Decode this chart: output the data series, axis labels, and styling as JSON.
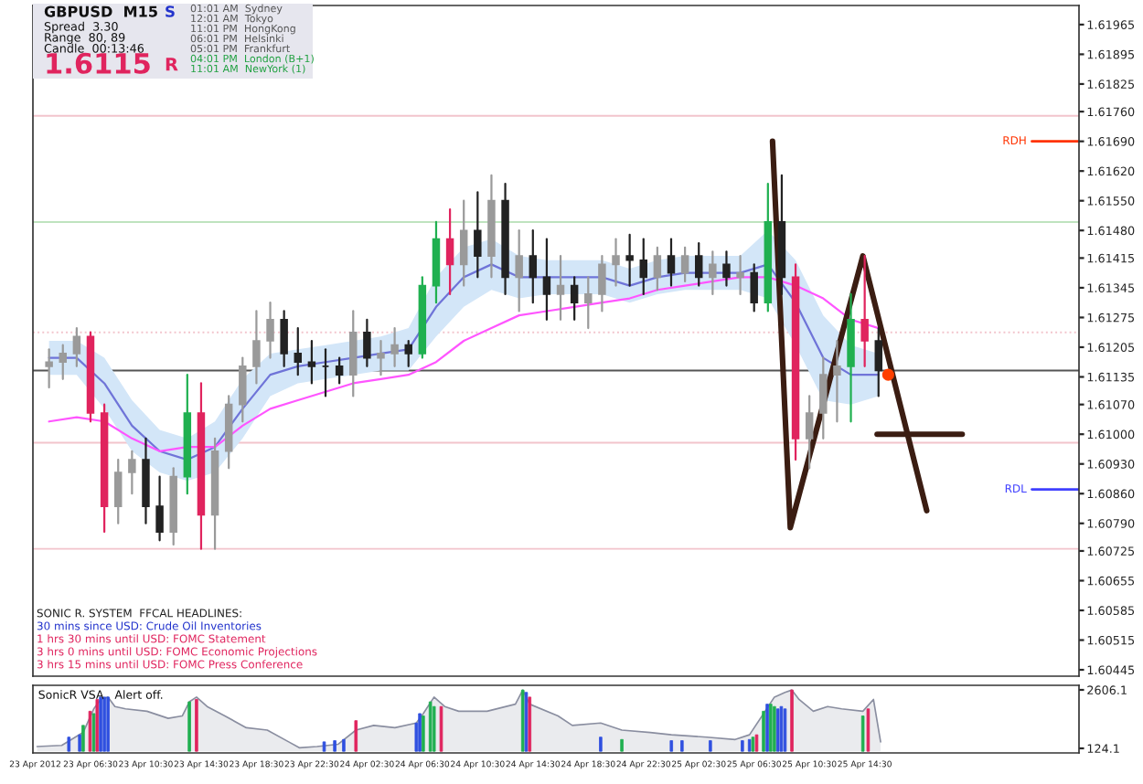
{
  "chart_data": [
    {
      "type": "candlestick",
      "title": "GBPUSD  M15",
      "x": [
        "2012-04-23T03:30",
        "2012-04-23T04:30",
        "2012-04-23T05:30",
        "2012-04-23T06:30",
        "2012-04-23T07:30",
        "2012-04-23T08:30",
        "2012-04-23T09:30",
        "2012-04-23T10:30",
        "2012-04-23T11:30",
        "2012-04-23T12:30",
        "2012-04-23T13:30",
        "2012-04-23T14:30",
        "2012-04-23T15:30",
        "2012-04-23T16:30",
        "2012-04-23T17:30",
        "2012-04-23T18:30",
        "2012-04-23T19:30",
        "2012-04-23T20:30",
        "2012-04-23T21:30",
        "2012-04-23T22:30",
        "2012-04-23T23:30",
        "2012-04-24T00:30",
        "2012-04-24T01:30",
        "2012-04-24T02:30",
        "2012-04-24T03:30",
        "2012-04-24T04:30",
        "2012-04-24T05:30",
        "2012-04-24T06:30",
        "2012-04-24T07:30",
        "2012-04-24T08:30",
        "2012-04-24T09:30",
        "2012-04-24T10:30",
        "2012-04-24T11:30",
        "2012-04-24T12:30",
        "2012-04-24T13:30",
        "2012-04-24T14:30",
        "2012-04-24T15:30",
        "2012-04-24T16:30",
        "2012-04-24T17:30",
        "2012-04-24T18:30",
        "2012-04-24T19:30",
        "2012-04-24T20:30",
        "2012-04-24T21:30",
        "2012-04-24T22:30",
        "2012-04-24T23:30",
        "2012-04-25T00:30",
        "2012-04-25T01:30",
        "2012-04-25T02:30",
        "2012-04-25T03:30",
        "2012-04-25T04:30",
        "2012-04-25T05:30",
        "2012-04-25T06:30",
        "2012-04-25T07:30",
        "2012-04-25T08:30",
        "2012-04-25T09:30",
        "2012-04-25T10:30",
        "2012-04-25T11:30",
        "2012-04-25T12:30",
        "2012-04-25T13:30",
        "2012-04-25T14:30",
        "2012-04-25T15:30"
      ],
      "ohlc": [
        [
          1.6116,
          1.612,
          1.6111,
          1.6117
        ],
        [
          1.6117,
          1.6121,
          1.6113,
          1.6119
        ],
        [
          1.6119,
          1.6125,
          1.6116,
          1.6123
        ],
        [
          1.6123,
          1.6124,
          1.6103,
          1.6105
        ],
        [
          1.6105,
          1.6107,
          1.6077,
          1.6083
        ],
        [
          1.6083,
          1.6094,
          1.6079,
          1.6091
        ],
        [
          1.6091,
          1.6096,
          1.6086,
          1.6094
        ],
        [
          1.6094,
          1.6099,
          1.6079,
          1.6083
        ],
        [
          1.6083,
          1.609,
          1.6075,
          1.6077
        ],
        [
          1.6077,
          1.6092,
          1.6074,
          1.609
        ],
        [
          1.609,
          1.6114,
          1.6086,
          1.6105
        ],
        [
          1.6105,
          1.6112,
          1.6073,
          1.6081
        ],
        [
          1.6081,
          1.6099,
          1.6073,
          1.6096
        ],
        [
          1.6096,
          1.6109,
          1.6092,
          1.6107
        ],
        [
          1.6107,
          1.6118,
          1.6103,
          1.6116
        ],
        [
          1.6116,
          1.6129,
          1.6112,
          1.6122
        ],
        [
          1.6122,
          1.6131,
          1.6118,
          1.6127
        ],
        [
          1.6127,
          1.6129,
          1.6116,
          1.6119
        ],
        [
          1.6119,
          1.6125,
          1.6114,
          1.6117
        ],
        [
          1.6117,
          1.6122,
          1.6112,
          1.6116
        ],
        [
          1.6116,
          1.612,
          1.6109,
          1.6116
        ],
        [
          1.6116,
          1.6118,
          1.6112,
          1.6114
        ],
        [
          1.6114,
          1.6129,
          1.6109,
          1.6124
        ],
        [
          1.6124,
          1.6127,
          1.6116,
          1.6118
        ],
        [
          1.6118,
          1.6122,
          1.6114,
          1.6119
        ],
        [
          1.6119,
          1.6125,
          1.6116,
          1.6121
        ],
        [
          1.6121,
          1.6122,
          1.6116,
          1.6119
        ],
        [
          1.6119,
          1.6137,
          1.6118,
          1.6135
        ],
        [
          1.6135,
          1.615,
          1.6131,
          1.6146
        ],
        [
          1.6146,
          1.6153,
          1.6133,
          1.614
        ],
        [
          1.614,
          1.6155,
          1.6135,
          1.6148
        ],
        [
          1.6148,
          1.6157,
          1.6137,
          1.6142
        ],
        [
          1.6142,
          1.6161,
          1.6137,
          1.6155
        ],
        [
          1.6155,
          1.6159,
          1.6133,
          1.6137
        ],
        [
          1.6137,
          1.6148,
          1.6129,
          1.6142
        ],
        [
          1.6142,
          1.6148,
          1.6131,
          1.6137
        ],
        [
          1.6137,
          1.6146,
          1.6127,
          1.6133
        ],
        [
          1.6133,
          1.6142,
          1.6127,
          1.6135
        ],
        [
          1.6135,
          1.6137,
          1.6127,
          1.6131
        ],
        [
          1.6131,
          1.6137,
          1.6125,
          1.6133
        ],
        [
          1.6133,
          1.6142,
          1.6129,
          1.614
        ],
        [
          1.614,
          1.6146,
          1.6135,
          1.6142
        ],
        [
          1.6142,
          1.6147,
          1.6135,
          1.6141
        ],
        [
          1.6141,
          1.6146,
          1.6133,
          1.6137
        ],
        [
          1.6137,
          1.6144,
          1.6134,
          1.6142
        ],
        [
          1.6142,
          1.6146,
          1.6135,
          1.6138
        ],
        [
          1.6138,
          1.6144,
          1.6136,
          1.6142
        ],
        [
          1.6142,
          1.6145,
          1.6135,
          1.6137
        ],
        [
          1.6137,
          1.6143,
          1.6133,
          1.614
        ],
        [
          1.614,
          1.6143,
          1.6135,
          1.6137
        ],
        [
          1.6137,
          1.6142,
          1.6133,
          1.6138
        ],
        [
          1.6138,
          1.614,
          1.6129,
          1.6131
        ],
        [
          1.6131,
          1.6159,
          1.6129,
          1.615
        ],
        [
          1.615,
          1.6161,
          1.6133,
          1.6137
        ],
        [
          1.6137,
          1.614,
          1.6094,
          1.6099
        ],
        [
          1.6099,
          1.6109,
          1.6092,
          1.6105
        ],
        [
          1.6105,
          1.6118,
          1.6099,
          1.6114
        ],
        [
          1.6114,
          1.6122,
          1.6103,
          1.6116
        ],
        [
          1.6116,
          1.6133,
          1.6103,
          1.6127
        ],
        [
          1.6127,
          1.6142,
          1.6116,
          1.6122
        ],
        [
          1.6122,
          1.6125,
          1.6109,
          1.6115
        ]
      ],
      "colors": [
        "#9a9a9a",
        "#9a9a9a",
        "#9a9a9a",
        "#e0245e",
        "#e0245e",
        "#9a9a9a",
        "#9a9a9a",
        "#222222",
        "#222222",
        "#9a9a9a",
        "#20b050",
        "#e0245e",
        "#9a9a9a",
        "#9a9a9a",
        "#9a9a9a",
        "#9a9a9a",
        "#9a9a9a",
        "#222222",
        "#222222",
        "#222222",
        "#222222",
        "#222222",
        "#9a9a9a",
        "#222222",
        "#9a9a9a",
        "#9a9a9a",
        "#222222",
        "#20b050",
        "#20b050",
        "#e0245e",
        "#9a9a9a",
        "#222222",
        "#9a9a9a",
        "#222222",
        "#9a9a9a",
        "#222222",
        "#222222",
        "#9a9a9a",
        "#222222",
        "#9a9a9a",
        "#9a9a9a",
        "#9a9a9a",
        "#222222",
        "#222222",
        "#9a9a9a",
        "#222222",
        "#9a9a9a",
        "#222222",
        "#9a9a9a",
        "#222222",
        "#9a9a9a",
        "#222222",
        "#20b050",
        "#222222",
        "#e0245e",
        "#9a9a9a",
        "#9a9a9a",
        "#9a9a9a",
        "#20b050",
        "#e0245e",
        "#222222"
      ],
      "series": [
        {
          "type": "line",
          "color": "#6f74d8",
          "x": [
            "2012-04-23T03:30",
            "2012-04-23T05:30",
            "2012-04-23T07:30",
            "2012-04-23T09:30",
            "2012-04-23T11:30",
            "2012-04-23T13:30",
            "2012-04-23T15:30",
            "2012-04-23T17:30",
            "2012-04-23T19:30",
            "2012-04-23T21:30",
            "2012-04-23T23:30",
            "2012-04-24T01:30",
            "2012-04-24T03:30",
            "2012-04-24T05:30",
            "2012-04-24T07:30",
            "2012-04-24T09:30",
            "2012-04-24T11:30",
            "2012-04-24T13:30",
            "2012-04-24T15:30",
            "2012-04-24T17:30",
            "2012-04-24T19:30",
            "2012-04-24T21:30",
            "2012-04-24T23:30",
            "2012-04-25T01:30",
            "2012-04-25T03:30",
            "2012-04-25T05:30",
            "2012-04-25T07:30",
            "2012-04-25T09:30",
            "2012-04-25T11:30",
            "2012-04-25T13:30",
            "2012-04-25T15:30"
          ],
          "values": [
            1.6118,
            1.6118,
            1.6112,
            1.6102,
            1.6096,
            1.6094,
            1.6097,
            1.6106,
            1.6114,
            1.6116,
            1.6117,
            1.6118,
            1.6119,
            1.612,
            1.613,
            1.6137,
            1.614,
            1.6137,
            1.6137,
            1.6137,
            1.6137,
            1.6135,
            1.6137,
            1.6138,
            1.6138,
            1.6138,
            1.614,
            1.6131,
            1.6118,
            1.6114,
            1.6114
          ],
          "upper": [
            1.6122,
            1.6122,
            1.6118,
            1.6108,
            1.6101,
            1.6099,
            1.6103,
            1.6113,
            1.6119,
            1.612,
            1.6121,
            1.6122,
            1.6123,
            1.6125,
            1.6137,
            1.6144,
            1.6146,
            1.6142,
            1.6141,
            1.6141,
            1.6141,
            1.6139,
            1.6141,
            1.6142,
            1.6142,
            1.6142,
            1.6148,
            1.6141,
            1.6128,
            1.6121,
            1.6119
          ],
          "lower": [
            1.6114,
            1.6114,
            1.6106,
            1.6096,
            1.6091,
            1.6089,
            1.6091,
            1.6099,
            1.6109,
            1.6112,
            1.6113,
            1.6114,
            1.6115,
            1.6115,
            1.6123,
            1.613,
            1.6134,
            1.6132,
            1.6133,
            1.6133,
            1.6133,
            1.6131,
            1.6133,
            1.6134,
            1.6134,
            1.6134,
            1.6132,
            1.6121,
            1.6108,
            1.6107,
            1.6109
          ]
        },
        {
          "type": "line",
          "color": "#ff55ff",
          "x": [
            "2012-04-23T03:30",
            "2012-04-23T05:30",
            "2012-04-23T07:30",
            "2012-04-23T09:30",
            "2012-04-23T11:30",
            "2012-04-23T13:30",
            "2012-04-23T15:30",
            "2012-04-23T17:30",
            "2012-04-23T19:30",
            "2012-04-23T21:30",
            "2012-04-23T23:30",
            "2012-04-24T01:30",
            "2012-04-24T03:30",
            "2012-04-24T05:30",
            "2012-04-24T07:30",
            "2012-04-24T09:30",
            "2012-04-24T11:30",
            "2012-04-24T13:30",
            "2012-04-24T15:30",
            "2012-04-24T17:30",
            "2012-04-24T19:30",
            "2012-04-24T21:30",
            "2012-04-24T23:30",
            "2012-04-25T01:30",
            "2012-04-25T03:30",
            "2012-04-25T05:30",
            "2012-04-25T07:30",
            "2012-04-25T09:30",
            "2012-04-25T11:30",
            "2012-04-25T13:30",
            "2012-04-25T15:30"
          ],
          "values": [
            1.6103,
            1.6104,
            1.6103,
            1.6099,
            1.6096,
            1.6097,
            1.6097,
            1.6102,
            1.6106,
            1.6108,
            1.611,
            1.6112,
            1.6113,
            1.6114,
            1.6117,
            1.6122,
            1.6125,
            1.6128,
            1.6129,
            1.613,
            1.6131,
            1.6132,
            1.6134,
            1.6135,
            1.6136,
            1.6137,
            1.6137,
            1.6135,
            1.6132,
            1.6127,
            1.6125
          ]
        },
        {
          "type": "line",
          "color": "#3b1d12",
          "x": [
            "2012-04-25T07:50",
            "2012-04-25T09:07",
            "2012-04-25T14:22",
            "2012-04-25T18:59"
          ],
          "values": [
            1.6169,
            1.6078,
            1.6142,
            1.6082
          ]
        },
        {
          "type": "line",
          "color": "#3b1d12",
          "x": [
            "2012-04-25T15:24",
            "2012-04-25T21:33"
          ],
          "values": [
            1.61,
            1.61
          ]
        },
        {
          "type": "scatter",
          "color": "#ff4000",
          "x": [
            "2012-04-25T16:12"
          ],
          "values": [
            1.6114
          ]
        }
      ],
      "ref_lines": [
        {
          "axis": "y",
          "value": 1.6175,
          "color": "#f2c4cc"
        },
        {
          "axis": "y",
          "value": 1.6169,
          "label": "RDH",
          "color": "#ff3300"
        },
        {
          "axis": "y",
          "value": 1.615,
          "color": "#bfe3bf"
        },
        {
          "axis": "y",
          "value": 1.6124,
          "color": "#f2c4cc",
          "line_style": "dotted"
        },
        {
          "axis": "y",
          "value": 1.6115,
          "color": "#555555"
        },
        {
          "axis": "y",
          "value": 1.6098,
          "color": "#f2c4cc"
        },
        {
          "axis": "y",
          "value": 1.6087,
          "label": "RDL",
          "color": "#4040ff"
        },
        {
          "axis": "y",
          "value": 1.6073,
          "color": "#f2c4cc"
        }
      ],
      "xlim": [
        "2012-04-23T02:20",
        "2012-04-26T06:00"
      ],
      "ylim": [
        1.6043,
        1.6201
      ],
      "yticks": [
        {
          "value": 1.61965,
          "label": "1.61965"
        },
        {
          "value": 1.61895,
          "label": "1.61895"
        },
        {
          "value": 1.61825,
          "label": "1.61825"
        },
        {
          "value": 1.6176,
          "label": "1.61760"
        },
        {
          "value": 1.6169,
          "label": "1.61690"
        },
        {
          "value": 1.6162,
          "label": "1.61620"
        },
        {
          "value": 1.6155,
          "label": "1.61550"
        },
        {
          "value": 1.6148,
          "label": "1.61480"
        },
        {
          "value": 1.61415,
          "label": "1.61415"
        },
        {
          "value": 1.61345,
          "label": "1.61345"
        },
        {
          "value": 1.61275,
          "label": "1.61275"
        },
        {
          "value": 1.61205,
          "label": "1.61205"
        },
        {
          "value": 1.61135,
          "label": "1.61135"
        },
        {
          "value": 1.6107,
          "label": "1.61070"
        },
        {
          "value": 1.61,
          "label": "1.61000"
        },
        {
          "value": 1.6093,
          "label": "1.60930"
        },
        {
          "value": 1.6086,
          "label": "1.60860"
        },
        {
          "value": 1.6079,
          "label": "1.60790"
        },
        {
          "value": 1.60725,
          "label": "1.60725"
        },
        {
          "value": 1.60655,
          "label": "1.60655"
        },
        {
          "value": 1.60585,
          "label": "1.60585"
        },
        {
          "value": 1.60515,
          "label": "1.60515"
        },
        {
          "value": 1.60445,
          "label": "1.60445"
        }
      ],
      "tick_labels": "y",
      "grid": false,
      "annotations": [
        "Spread  3.30",
        "Range  80, 89",
        "Candle  00:13:46",
        "1.6115",
        "S",
        "R",
        "01:01 AM  Sydney",
        "12:01 AM  Tokyo",
        "11:01 PM  HongKong",
        "06:01 PM  Helsinki",
        "05:01 PM  Frankfurt",
        "04:01 PM  London (B+1)",
        "11:01 AM  NewYork (1)",
        "SONIC R. SYSTEM  FFCAL HEADLINES:",
        "30 mins since USD: Crude Oil Inventories",
        "1 hrs 30 mins until USD: FOMC Statement",
        "3 hrs 0 mins until USD: FOMC Economic Projections",
        "3 hrs 15 mins until USD: FOMC Press Conference"
      ]
    },
    {
      "type": "area",
      "title": "SonicR VSA   Alert off.",
      "series": [
        {
          "type": "area",
          "color": "#8a8ea0",
          "x": [
            "2012-04-23T02:38",
            "2012-04-23T04:25",
            "2012-04-23T05:58",
            "2012-04-23T06:44",
            "2012-04-23T07:14",
            "2012-04-23T07:46",
            "2012-04-23T08:16",
            "2012-04-23T09:02",
            "2012-04-23T10:35",
            "2012-04-23T12:07",
            "2012-04-23T13:08",
            "2012-04-23T13:39",
            "2012-04-23T14:10",
            "2012-04-23T14:56",
            "2012-04-23T16:13",
            "2012-04-23T17:46",
            "2012-04-23T19:17",
            "2012-04-23T20:50",
            "2012-04-23T21:36",
            "2012-04-23T22:53",
            "2012-04-24T00:25",
            "2012-04-24T01:42",
            "2012-04-24T02:59",
            "2012-04-24T04:31",
            "2012-04-24T06:04",
            "2012-04-24T06:34",
            "2012-04-24T07:21",
            "2012-04-24T08:07",
            "2012-04-24T09:08",
            "2012-04-24T11:11",
            "2012-04-24T13:14",
            "2012-04-24T13:46",
            "2012-04-24T14:16",
            "2012-04-24T16:19",
            "2012-04-24T17:21",
            "2012-04-24T19:24",
            "2012-04-24T20:56",
            "2012-04-24T22:59",
            "2012-04-25T00:31",
            "2012-04-25T03:05",
            "2012-04-25T05:08",
            "2012-04-25T06:10",
            "2012-04-25T07:11",
            "2012-04-25T07:58",
            "2012-04-25T08:44",
            "2012-04-25T09:14",
            "2012-04-25T09:45",
            "2012-04-25T10:47",
            "2012-04-25T11:49",
            "2012-04-25T12:50",
            "2012-04-25T14:22",
            "2012-04-25T15:08",
            "2012-04-25T15:39"
          ],
          "values": [
            200,
            250,
            800,
            1800,
            2200,
            2300,
            1900,
            1800,
            1700,
            1400,
            1500,
            2100,
            2300,
            1900,
            1500,
            1000,
            900,
            400,
            150,
            200,
            300,
            900,
            1100,
            1000,
            1200,
            1600,
            2300,
            1900,
            1700,
            1700,
            2000,
            2600,
            2000,
            1500,
            1100,
            1200,
            900,
            800,
            700,
            600,
            500,
            700,
            1600,
            2300,
            2500,
            2600,
            2200,
            1700,
            1900,
            1800,
            1700,
            2200,
            400
          ]
        },
        {
          "type": "bar",
          "x": [
            "2012-04-23T04:56",
            "2012-04-23T05:43",
            "2012-04-23T05:58",
            "2012-04-23T06:28",
            "2012-04-23T06:44",
            "2012-04-23T06:59",
            "2012-04-23T07:14",
            "2012-04-23T07:30",
            "2012-04-23T07:46",
            "2012-04-23T13:39",
            "2012-04-23T14:10",
            "2012-04-23T23:24",
            "2012-04-24T00:10",
            "2012-04-24T00:49",
            "2012-04-24T01:42",
            "2012-04-24T06:04",
            "2012-04-24T06:19",
            "2012-04-24T06:34",
            "2012-04-24T07:05",
            "2012-04-24T07:21",
            "2012-04-24T07:52",
            "2012-04-24T13:46",
            "2012-04-24T14:01",
            "2012-04-24T14:16",
            "2012-04-24T19:24",
            "2012-04-24T20:56",
            "2012-04-25T00:31",
            "2012-04-25T01:17",
            "2012-04-25T03:20",
            "2012-04-25T05:39",
            "2012-04-25T06:10",
            "2012-04-25T06:25",
            "2012-04-25T06:41",
            "2012-04-25T07:11",
            "2012-04-25T07:27",
            "2012-04-25T07:42",
            "2012-04-25T07:58",
            "2012-04-25T08:13",
            "2012-04-25T08:28",
            "2012-04-25T08:44",
            "2012-04-25T09:14",
            "2012-04-25T14:22",
            "2012-04-25T14:45"
          ],
          "values": [
            600,
            700,
            1100,
            1700,
            1600,
            2200,
            2300,
            2300,
            2300,
            2100,
            2200,
            400,
            450,
            500,
            1300,
            1200,
            1600,
            1500,
            2100,
            1900,
            1900,
            2600,
            2500,
            2300,
            600,
            500,
            450,
            450,
            450,
            450,
            500,
            600,
            700,
            1700,
            2000,
            2000,
            1900,
            1800,
            1900,
            1800,
            2600,
            1500,
            1800
          ],
          "colors": [
            "#3050e0",
            "#3050e0",
            "#20b050",
            "#e0245e",
            "#20b050",
            "#e0245e",
            "#3050e0",
            "#3050e0",
            "#3050e0",
            "#20b050",
            "#e0245e",
            "#3050e0",
            "#3050e0",
            "#3050e0",
            "#e0245e",
            "#3050e0",
            "#3050e0",
            "#20b050",
            "#20b050",
            "#20b050",
            "#e0245e",
            "#20b050",
            "#3050e0",
            "#e0245e",
            "#3050e0",
            "#20b050",
            "#3050e0",
            "#3050e0",
            "#3050e0",
            "#3050e0",
            "#3050e0",
            "#20b050",
            "#e0245e",
            "#20b050",
            "#3050e0",
            "#20b050",
            "#20b050",
            "#3050e0",
            "#3050e0",
            "#3050e0",
            "#e0245e",
            "#20b050",
            "#e0245e"
          ]
        }
      ],
      "xlim": [
        "2012-04-23T02:20",
        "2012-04-26T06:00"
      ],
      "ylim": [
        -70,
        2800
      ],
      "yticks": [
        2606.1,
        124.1
      ],
      "xticks": [
        {
          "value": "2012-04-23T02:30",
          "label": "23 Apr 2012"
        },
        {
          "value": "2012-04-23T06:30",
          "label": "23 Apr 06:30"
        },
        {
          "value": "2012-04-23T10:30",
          "label": "23 Apr 10:30"
        },
        {
          "value": "2012-04-23T14:30",
          "label": "23 Apr 14:30"
        },
        {
          "value": "2012-04-23T18:30",
          "label": "23 Apr 18:30"
        },
        {
          "value": "2012-04-23T22:30",
          "label": "23 Apr 22:30"
        },
        {
          "value": "2012-04-24T02:30",
          "label": "24 Apr 02:30"
        },
        {
          "value": "2012-04-24T06:30",
          "label": "24 Apr 06:30"
        },
        {
          "value": "2012-04-24T10:30",
          "label": "24 Apr 10:30"
        },
        {
          "value": "2012-04-24T14:30",
          "label": "24 Apr 14:30"
        },
        {
          "value": "2012-04-24T18:30",
          "label": "24 Apr 18:30"
        },
        {
          "value": "2012-04-24T22:30",
          "label": "24 Apr 22:30"
        },
        {
          "value": "2012-04-25T02:30",
          "label": "25 Apr 02:30"
        },
        {
          "value": "2012-04-25T06:30",
          "label": "25 Apr 06:30"
        },
        {
          "value": "2012-04-25T10:30",
          "label": "25 Apr 10:30"
        },
        {
          "value": "2012-04-25T14:30",
          "label": "25 Apr 14:30"
        }
      ],
      "grid": false
    }
  ]
}
